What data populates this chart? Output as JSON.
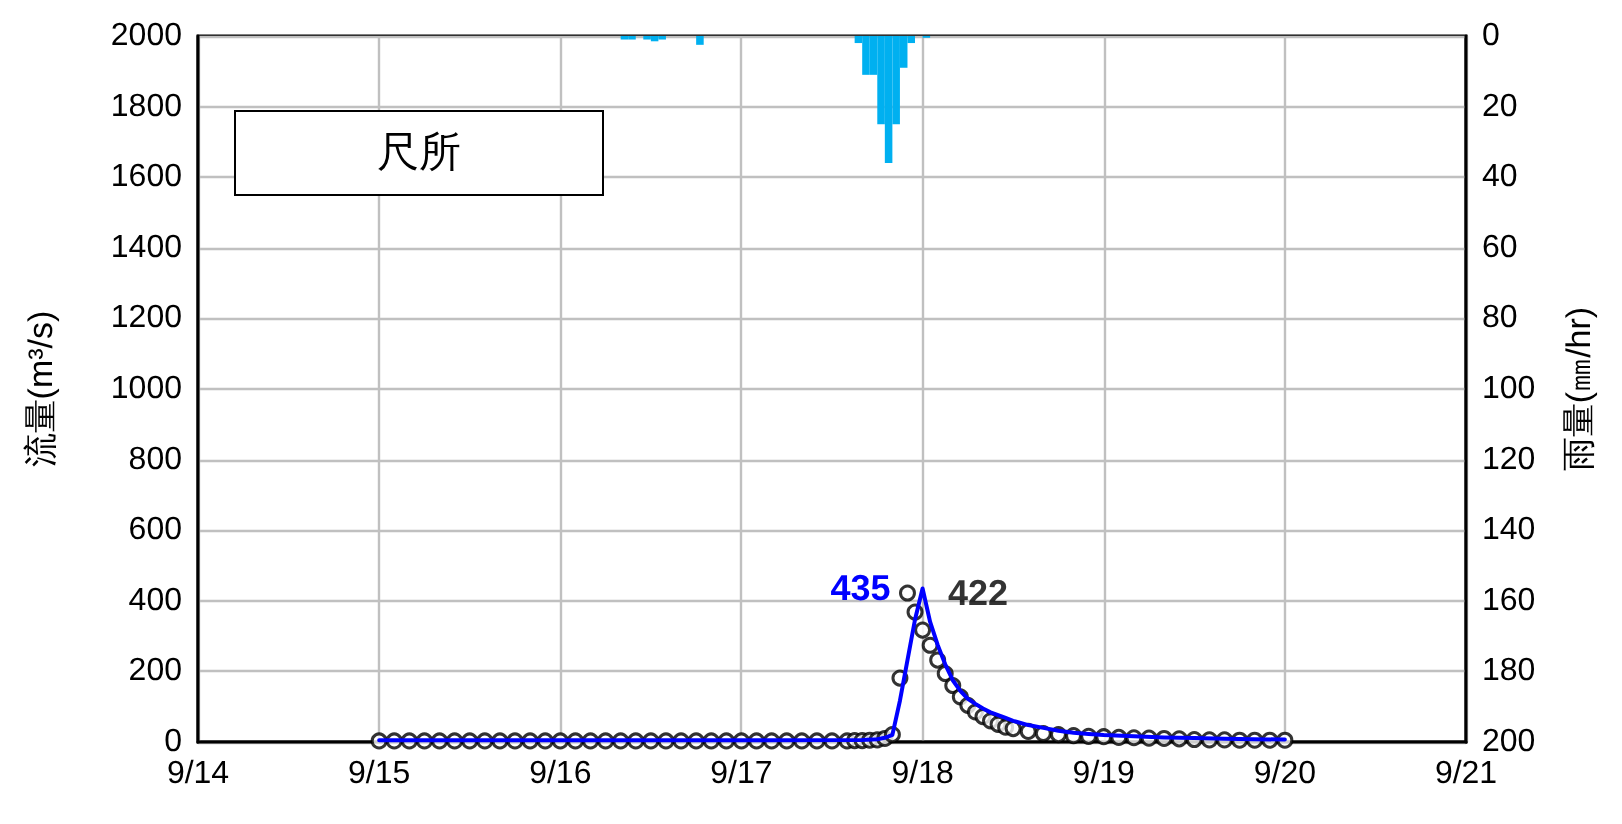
{
  "chart_data": {
    "type": "line",
    "title": "尺所",
    "ylabel": "流量(m³/s)",
    "y2label": "雨量(㎜/hr)",
    "xlim": [
      "--09-14",
      "--09-21"
    ],
    "xticks": [
      {
        "value": "--09-14",
        "label": "9/14"
      },
      {
        "value": "--09-15",
        "label": "9/15"
      },
      {
        "value": "--09-16",
        "label": "9/16"
      },
      {
        "value": "--09-17",
        "label": "9/17"
      },
      {
        "value": "--09-18",
        "label": "9/18"
      },
      {
        "value": "--09-19",
        "label": "9/19"
      },
      {
        "value": "--09-20",
        "label": "9/20"
      },
      {
        "value": "--09-21",
        "label": "9/21"
      }
    ],
    "ylim": [
      0,
      2000
    ],
    "yticks": [
      0,
      200,
      400,
      600,
      800,
      1000,
      1200,
      1400,
      1600,
      1800,
      2000
    ],
    "y2lim": [
      200,
      0
    ],
    "y2ticks": [
      0,
      20,
      40,
      60,
      80,
      100,
      120,
      140,
      160,
      180,
      200
    ],
    "grid": true,
    "series": [
      {
        "type": "bar",
        "axis": "y2",
        "color": "#00b0f0",
        "x": [
          "--09-16T08:30",
          "--09-16T09:30",
          "--09-16T11:30",
          "--09-16T12:30",
          "--09-16T13:30",
          "--09-16T18:30",
          "--09-17T15:30",
          "--09-17T16:30",
          "--09-17T17:30",
          "--09-17T18:30",
          "--09-17T19:30",
          "--09-17T20:30",
          "--09-17T21:30",
          "--09-17T22:30",
          "--09-18T00:30"
        ],
        "values": [
          1,
          1,
          1,
          1.5,
          1,
          2.5,
          2,
          11,
          11,
          25,
          36,
          25,
          9,
          2,
          0.5
        ]
      },
      {
        "color": "#0000ff",
        "marker": "none",
        "x": [
          "--09-15T00:00",
          "--09-16T00:00",
          "--09-17T00:00",
          "--09-17T16:00",
          "--09-17T18:00",
          "--09-17T19:00",
          "--09-17T20:00",
          "--09-17T21:00",
          "--09-17T22:00",
          "--09-17T23:00",
          "--09-18T00:00",
          "--09-18T01:00",
          "--09-18T02:00",
          "--09-18T03:00",
          "--09-18T04:00",
          "--09-18T05:00",
          "--09-18T06:00",
          "--09-18T07:00",
          "--09-18T08:00",
          "--09-18T09:00",
          "--09-18T10:00",
          "--09-18T11:00",
          "--09-18T12:00",
          "--09-18T14:00",
          "--09-18T16:00",
          "--09-18T18:00",
          "--09-18T20:00",
          "--09-18T22:00",
          "--09-19T00:00",
          "--09-19T04:00",
          "--09-19T08:00",
          "--09-19T12:00",
          "--09-19T16:00",
          "--09-19T20:00",
          "--09-20T00:00"
        ],
        "values": [
          5,
          5,
          5,
          6,
          8,
          12,
          20,
          117,
          232,
          347,
          435,
          340,
          275,
          220,
          175,
          145,
          122,
          108,
          95,
          84,
          76,
          68,
          60,
          48,
          40,
          32,
          26,
          23,
          20,
          16,
          13,
          11,
          9,
          8,
          7
        ],
        "value_labels": [
          null,
          null,
          null,
          null,
          null,
          null,
          null,
          null,
          null,
          null,
          "435",
          null,
          null,
          null,
          null,
          null,
          null,
          null,
          null,
          null,
          null,
          null,
          null,
          null,
          null,
          null,
          null,
          null,
          null,
          null,
          null,
          null,
          null,
          null,
          null
        ]
      },
      {
        "type": "scatter",
        "color": "#000000",
        "marker": "circle",
        "x": [
          "--09-15T00:00",
          "--09-15T02:00",
          "--09-15T04:00",
          "--09-15T06:00",
          "--09-15T08:00",
          "--09-15T10:00",
          "--09-15T12:00",
          "--09-15T14:00",
          "--09-15T16:00",
          "--09-15T18:00",
          "--09-15T20:00",
          "--09-15T22:00",
          "--09-16T00:00",
          "--09-16T02:00",
          "--09-16T04:00",
          "--09-16T06:00",
          "--09-16T08:00",
          "--09-16T10:00",
          "--09-16T12:00",
          "--09-16T14:00",
          "--09-16T16:00",
          "--09-16T18:00",
          "--09-16T20:00",
          "--09-16T22:00",
          "--09-17T00:00",
          "--09-17T02:00",
          "--09-17T04:00",
          "--09-17T06:00",
          "--09-17T08:00",
          "--09-17T10:00",
          "--09-17T12:00",
          "--09-17T14:00",
          "--09-17T15:00",
          "--09-17T16:00",
          "--09-17T17:00",
          "--09-17T18:00",
          "--09-17T19:00",
          "--09-17T20:00",
          "--09-17T21:00",
          "--09-17T22:00",
          "--09-17T23:00",
          "--09-18T00:00",
          "--09-18T01:00",
          "--09-18T02:00",
          "--09-18T03:00",
          "--09-18T04:00",
          "--09-18T05:00",
          "--09-18T06:00",
          "--09-18T07:00",
          "--09-18T08:00",
          "--09-18T09:00",
          "--09-18T10:00",
          "--09-18T11:00",
          "--09-18T12:00",
          "--09-18T14:00",
          "--09-18T16:00",
          "--09-18T18:00",
          "--09-18T20:00",
          "--09-18T22:00",
          "--09-19T00:00",
          "--09-19T02:00",
          "--09-19T04:00",
          "--09-19T06:00",
          "--09-19T08:00",
          "--09-19T10:00",
          "--09-19T12:00",
          "--09-19T14:00",
          "--09-19T16:00",
          "--09-19T18:00",
          "--09-19T20:00",
          "--09-19T22:00",
          "--09-20T00:00"
        ],
        "values": [
          3,
          3,
          3,
          3,
          3,
          3,
          3,
          3,
          3,
          3,
          3,
          3,
          3,
          3,
          3,
          3,
          3,
          3,
          3,
          3,
          3,
          3,
          3,
          3,
          3,
          3,
          3,
          3,
          3,
          3,
          3,
          3,
          4,
          4,
          5,
          6,
          10,
          21,
          181,
          422,
          368,
          317,
          274,
          232,
          194,
          160,
          128,
          104,
          85,
          72,
          60,
          50,
          42,
          38,
          30,
          24,
          21,
          18,
          16,
          15,
          13,
          12,
          11,
          10,
          9,
          7,
          6,
          6,
          5,
          5,
          5,
          5
        ],
        "value_labels": [
          null,
          null,
          null,
          null,
          null,
          null,
          null,
          null,
          null,
          null,
          null,
          null,
          null,
          null,
          null,
          null,
          null,
          null,
          null,
          null,
          null,
          null,
          null,
          null,
          null,
          null,
          null,
          null,
          null,
          null,
          null,
          null,
          null,
          null,
          null,
          null,
          null,
          null,
          null,
          "422",
          null,
          null,
          null,
          null,
          null,
          null,
          null,
          null,
          null,
          null,
          null,
          null,
          null,
          null,
          null,
          null,
          null,
          null,
          null,
          null,
          null,
          null,
          null,
          null,
          null,
          null,
          null,
          null,
          null,
          null,
          null,
          null
        ]
      }
    ]
  }
}
